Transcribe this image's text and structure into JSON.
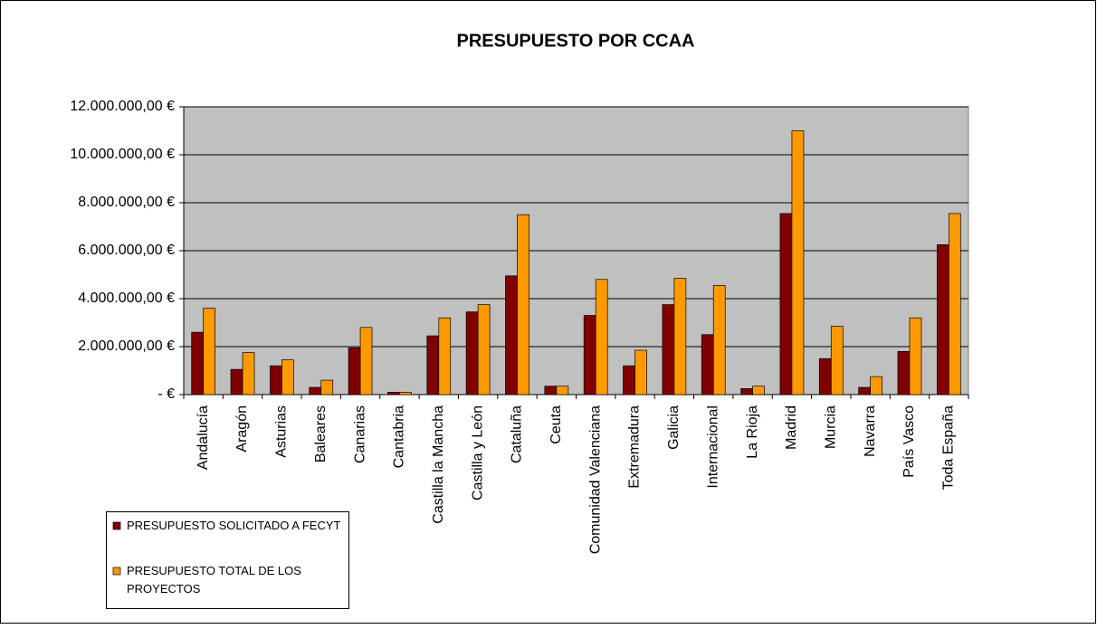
{
  "chart_data": {
    "type": "bar",
    "title": "PRESUPUESTO POR CCAA",
    "categories": [
      "Andalucía",
      "Aragón",
      "Asturias",
      "Baleares",
      "Canarias",
      "Cantabria",
      "Castilla la Mancha",
      "Castilla y León",
      "Cataluña",
      "Ceuta",
      "Comunidad Valenciana",
      "Extremadura",
      "Galicia",
      "Internacional",
      "La Rioja",
      "Madrid",
      "Murcia",
      "Navarra",
      "País Vasco",
      "Toda España"
    ],
    "series": [
      {
        "name": "PRESUPUESTO SOLICITADO A FECYT",
        "color": "#800000",
        "values": [
          2600000,
          1050000,
          1200000,
          300000,
          1950000,
          100000,
          2450000,
          3450000,
          4950000,
          350000,
          3300000,
          1200000,
          3750000,
          2500000,
          250000,
          7550000,
          1500000,
          300000,
          1800000,
          6250000
        ]
      },
      {
        "name": "PRESUPUESTO TOTAL DE LOS PROYECTOS",
        "color": "#FF9900",
        "values": [
          3600000,
          1750000,
          1450000,
          600000,
          2800000,
          100000,
          3200000,
          3750000,
          7500000,
          350000,
          4800000,
          1850000,
          4850000,
          4550000,
          350000,
          11000000,
          2850000,
          750000,
          3200000,
          7550000
        ]
      }
    ],
    "ylim": [
      0,
      12000000
    ],
    "yticks": [
      {
        "value": 0,
        "label": "-      €"
      },
      {
        "value": 2000000,
        "label": "2.000.000,00 €"
      },
      {
        "value": 4000000,
        "label": "4.000.000,00 €"
      },
      {
        "value": 6000000,
        "label": "6.000.000,00 €"
      },
      {
        "value": 8000000,
        "label": "8.000.000,00 €"
      },
      {
        "value": 10000000,
        "label": "10.000.000,00 €"
      },
      {
        "value": 12000000,
        "label": "12.000.000,00 €"
      }
    ],
    "grid": true,
    "background": "#C0C0C0",
    "legend": "bottom-left"
  }
}
